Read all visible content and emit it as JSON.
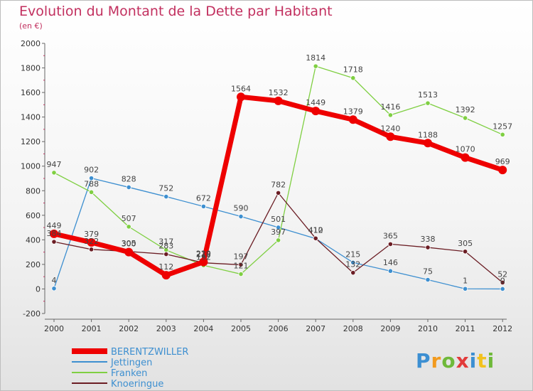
{
  "title": "Evolution du Montant de la Dette par Habitant",
  "subtitle": "(en €)",
  "logo_text": "Proxiti",
  "chart_data": {
    "type": "line",
    "x": [
      "2000",
      "2001",
      "2002",
      "2003",
      "2004",
      "2005",
      "2006",
      "2007",
      "2008",
      "2009",
      "2010",
      "2011",
      "2012"
    ],
    "ylim": [
      -200,
      2000
    ],
    "yticks": [
      "-200",
      "0",
      "200",
      "400",
      "600",
      "800",
      "1000",
      "1200",
      "1400",
      "1600",
      "1800",
      "2000"
    ],
    "grid": false,
    "legend_position": "bottom-left",
    "series": [
      {
        "name": "BERENTZWILLER",
        "color": "#ee0000",
        "values": [
          449,
          379,
          300,
          112,
          220,
          1564,
          1532,
          1449,
          1379,
          1240,
          1188,
          1070,
          969
        ]
      },
      {
        "name": "Jettingen",
        "color": "#3d8fd0",
        "values": [
          4,
          902,
          828,
          752,
          672,
          590,
          501,
          410,
          215,
          146,
          75,
          1,
          0
        ]
      },
      {
        "name": "Franken",
        "color": "#7fcf42",
        "values": [
          947,
          788,
          507,
          317,
          192,
          121,
          397,
          1814,
          1718,
          1416,
          1513,
          1392,
          1257
        ]
      },
      {
        "name": "Knoeringue",
        "color": "#6b1d24",
        "values": [
          384,
          322,
          305,
          283,
          213,
          197,
          782,
          412,
          132,
          365,
          338,
          305,
          52
        ]
      }
    ]
  }
}
